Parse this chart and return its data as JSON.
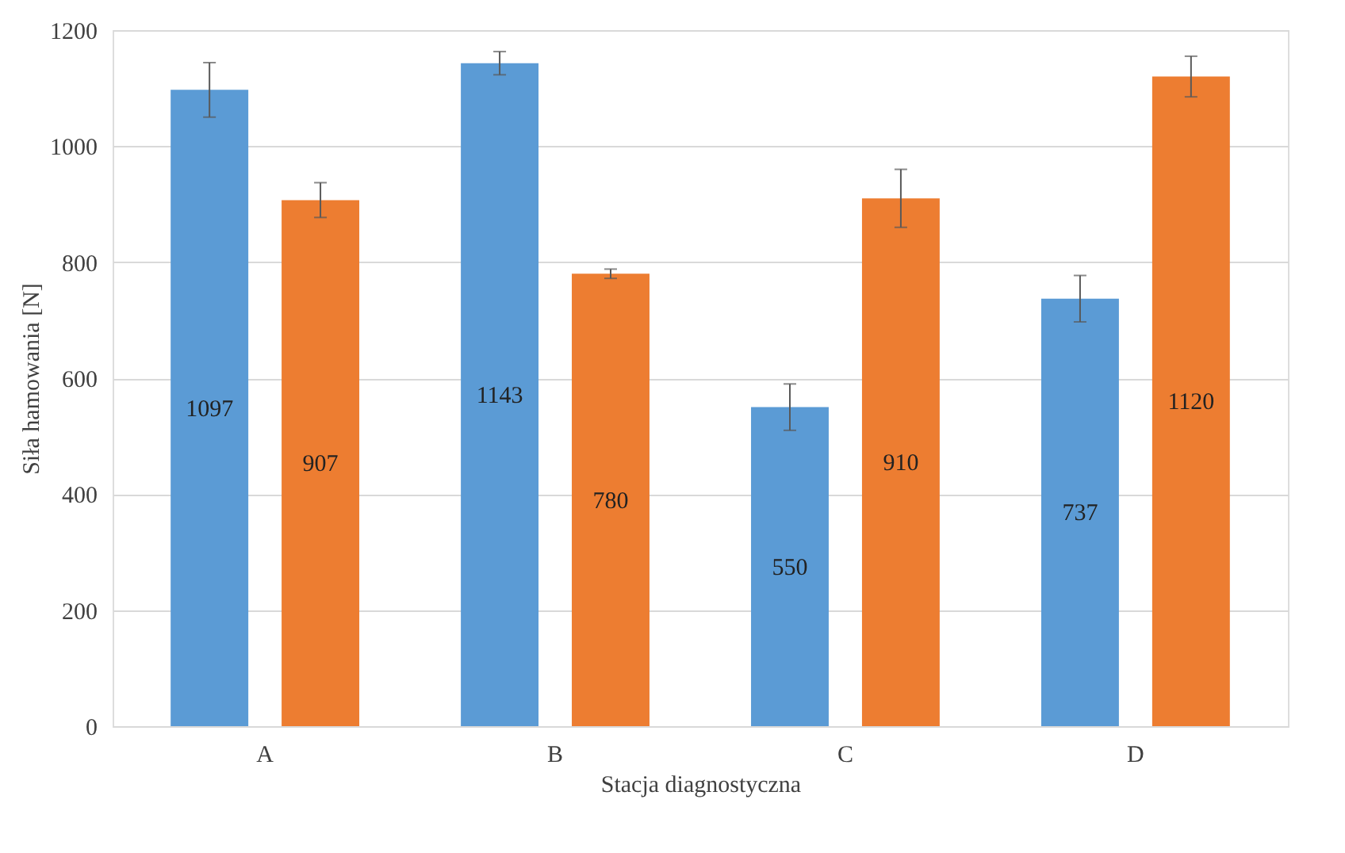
{
  "chart_data": {
    "type": "bar",
    "xlabel": "Stacja diagnostyczna",
    "ylabel": "Siła hamowania [N]",
    "categories": [
      "A",
      "B",
      "C",
      "D"
    ],
    "series": [
      {
        "color": "#5b9bd5",
        "values": [
          1097,
          1143,
          550,
          737
        ],
        "errors": [
          47,
          20,
          40,
          40
        ]
      },
      {
        "color": "#ed7d31",
        "values": [
          907,
          780,
          910,
          1120
        ],
        "errors": [
          30,
          8,
          50,
          35
        ]
      }
    ],
    "ylim": [
      0,
      1200
    ],
    "yticks": [
      0,
      200,
      400,
      600,
      800,
      1000,
      1200
    ],
    "grid": "y",
    "data_labels": true
  }
}
